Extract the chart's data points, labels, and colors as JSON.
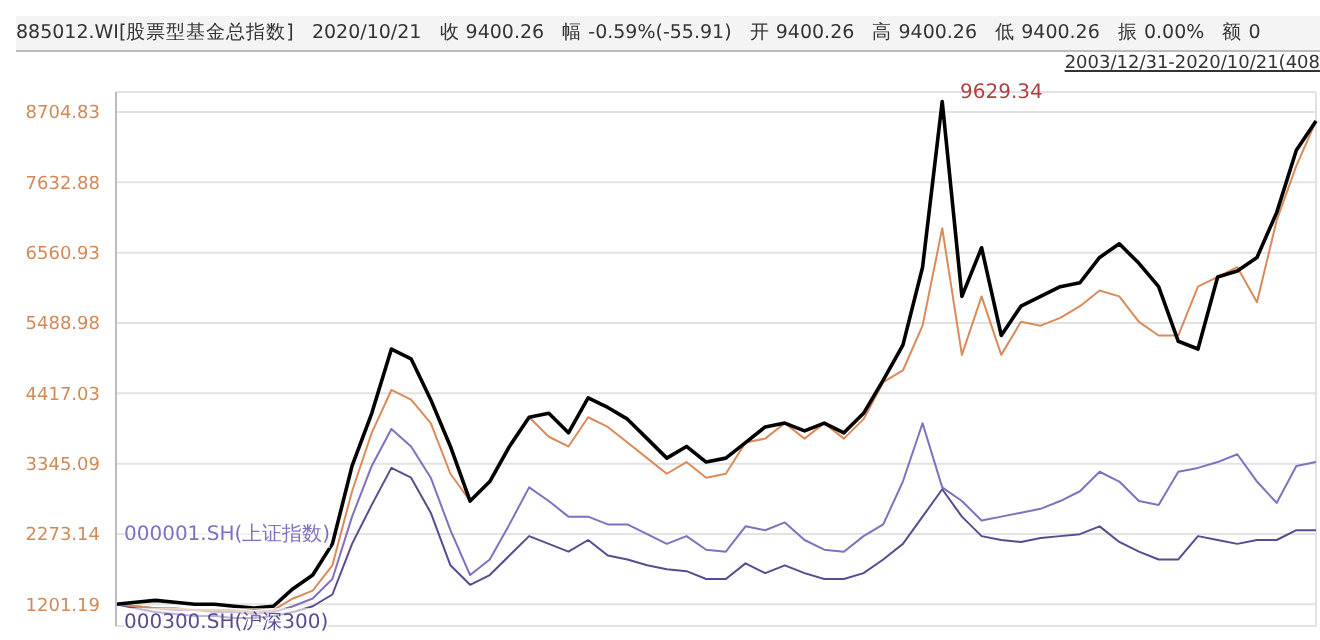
{
  "chart_data": {
    "type": "line",
    "title": "885012.WI[股票型基金总指数]   2020/10/21   收 9400.26   幅 -0.59%(-55.91)   开 9400.26   高 9400.26   低 9400.26   振 0.00%   额 0",
    "subtitle": "2003/12/31-2020/10/21(408",
    "annotations": [
      "9629.34"
    ],
    "categories": [
      null,
      null,
      null,
      null,
      null,
      null,
      null,
      null,
      null,
      null,
      null,
      null,
      null,
      null,
      null,
      null,
      null,
      null,
      null,
      null,
      null,
      null,
      null,
      null,
      null,
      null,
      null,
      null,
      null,
      null,
      null,
      null,
      null,
      null,
      null,
      null,
      null,
      null,
      null,
      null,
      null,
      null,
      null,
      null,
      null,
      null,
      null,
      null,
      null,
      null,
      null,
      null,
      null,
      null,
      null,
      null,
      null,
      null,
      null,
      null,
      null,
      null
    ],
    "series": [
      {
        "color": "#8070c0",
        "name": "000001.SH(上证指数)",
        "values": [
          1201,
          1171,
          1142,
          1112,
          1112,
          1082,
          1082,
          1053,
          1082,
          1171,
          1290,
          1587,
          2537,
          3310,
          3874,
          3607,
          3131,
          2330,
          1647,
          1884,
          2419,
          2983,
          2775,
          2537,
          2537,
          2419,
          2419,
          2270,
          2122,
          2240,
          2033,
          2003,
          2389,
          2330,
          2449,
          2181,
          2033,
          2003,
          2240,
          2419,
          3072,
          3960,
          2983,
          2775,
          2478,
          2537,
          2597,
          2656,
          2775,
          2924,
          3221,
          3072,
          2775,
          2716,
          3221,
          3280,
          3369,
          3488,
          3072,
          2746,
          3310,
          3369
        ]
      },
      {
        "color": "#5a4a90",
        "name": "000300.SH(沪深300)",
        "values": [
          1201,
          1142,
          1082,
          1053,
          1023,
          1023,
          993,
          993,
          1023,
          1082,
          1171,
          1350,
          2122,
          2716,
          3280,
          3131,
          2597,
          1795,
          1498,
          1647,
          1944,
          2240,
          2122,
          2003,
          2181,
          1944,
          1884,
          1795,
          1736,
          1706,
          1587,
          1587,
          1825,
          1676,
          1795,
          1676,
          1587,
          1587,
          1676,
          1884,
          2122,
          2537,
          2954,
          2537,
          2240,
          2181,
          2151,
          2211,
          2240,
          2270,
          2389,
          2151,
          2003,
          1884,
          1884,
          2240,
          2181,
          2122,
          2181,
          2181,
          2330,
          2330
        ]
      },
      {
        "color": "#d98b5a",
        "values": [
          1201,
          1171,
          1142,
          1142,
          1112,
          1112,
          1112,
          1082,
          1112,
          1290,
          1409,
          1795,
          2924,
          3815,
          4468,
          4320,
          3963,
          3191,
          2775,
          3072,
          3607,
          4052,
          3755,
          3607,
          4052,
          3904,
          3666,
          3429,
          3191,
          3369,
          3131,
          3191,
          3666,
          3726,
          3963,
          3726,
          3963,
          3726,
          4023,
          4587,
          4765,
          5448,
          6933,
          5003,
          5894,
          5003,
          5507,
          5448,
          5566,
          5745,
          5983,
          5894,
          5507,
          5299,
          5299,
          6042,
          6191,
          6339,
          5804,
          7052,
          7884,
          8567
        ]
      },
      {
        "color": "#000000",
        "values": [
          1201,
          1231,
          1260,
          1231,
          1201,
          1201,
          1171,
          1142,
          1171,
          1439,
          1647,
          2122,
          3310,
          4112,
          5092,
          4943,
          4320,
          3607,
          2775,
          3072,
          3607,
          4052,
          4112,
          3815,
          4349,
          4201,
          4023,
          3726,
          3429,
          3607,
          3369,
          3429,
          3666,
          3904,
          3963,
          3844,
          3963,
          3815,
          4112,
          4617,
          5151,
          6339,
          8864,
          5894,
          6636,
          5299,
          5745,
          5894,
          6042,
          6102,
          6488,
          6696,
          6399,
          6042,
          5210,
          5092,
          6191,
          6280,
          6488,
          7171,
          8121,
          8567
        ]
      }
    ],
    "ylim": [
      870,
      9010
    ],
    "yticks": [
      1201.19,
      2273.14,
      3345.09,
      4417.03,
      5488.98,
      6560.93,
      7632.88,
      8704.83
    ],
    "tick_labels": "y",
    "grid": true,
    "legend": false,
    "marker": "none",
    "line_style": "solid"
  }
}
